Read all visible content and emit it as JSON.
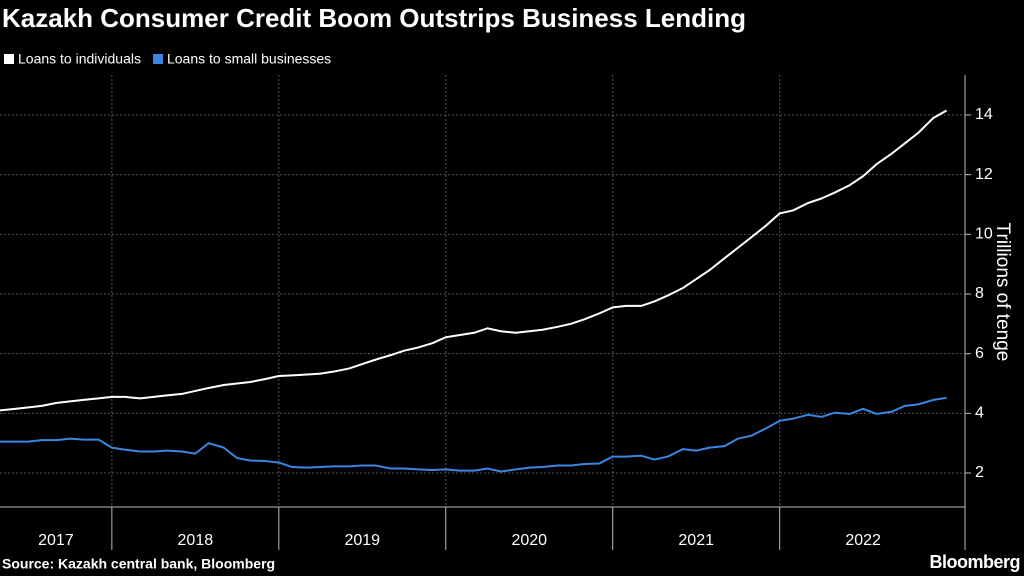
{
  "chart_data": {
    "type": "line",
    "title": "Kazakh Consumer Credit Boom Outstrips Business Lending",
    "y_axis_label": "Trillions of tenge",
    "source": "Source: Kazakh central bank, Bloomberg",
    "brand": "Bloomberg",
    "x": [
      2017.33,
      2017.42,
      2017.5,
      2017.58,
      2017.67,
      2017.75,
      2017.83,
      2017.92,
      2018,
      2018.08,
      2018.17,
      2018.25,
      2018.33,
      2018.42,
      2018.5,
      2018.58,
      2018.67,
      2018.75,
      2018.83,
      2018.92,
      2019,
      2019.08,
      2019.17,
      2019.25,
      2019.33,
      2019.42,
      2019.5,
      2019.58,
      2019.67,
      2019.75,
      2019.83,
      2019.92,
      2020,
      2020.08,
      2020.17,
      2020.25,
      2020.33,
      2020.42,
      2020.5,
      2020.58,
      2020.67,
      2020.75,
      2020.83,
      2020.92,
      2021,
      2021.08,
      2021.17,
      2021.25,
      2021.33,
      2021.42,
      2021.5,
      2021.58,
      2021.67,
      2021.75,
      2021.83,
      2021.92,
      2022,
      2022.08,
      2022.17,
      2022.25,
      2022.33,
      2022.42,
      2022.5,
      2022.58,
      2022.67,
      2022.75,
      2022.83,
      2022.92,
      2023
    ],
    "series": [
      {
        "name": "Loans to individuals",
        "color": "#ffffff",
        "values": [
          4.1,
          4.15,
          4.2,
          4.25,
          4.35,
          4.4,
          4.45,
          4.5,
          4.55,
          4.55,
          4.5,
          4.55,
          4.6,
          4.65,
          4.75,
          4.85,
          4.95,
          5.0,
          5.05,
          5.15,
          5.25,
          5.27,
          5.3,
          5.33,
          5.4,
          5.5,
          5.65,
          5.8,
          5.95,
          6.1,
          6.2,
          6.35,
          6.55,
          6.62,
          6.7,
          6.85,
          6.75,
          6.7,
          6.75,
          6.8,
          6.9,
          7.0,
          7.15,
          7.35,
          7.55,
          7.6,
          7.6,
          7.75,
          7.95,
          8.2,
          8.5,
          8.8,
          9.2,
          9.55,
          9.9,
          10.3,
          10.7,
          10.8,
          11.05,
          11.2,
          11.4,
          11.65,
          11.95,
          12.35,
          12.7,
          13.05,
          13.4,
          13.9,
          14.15
        ]
      },
      {
        "name": "Loans to small businesses",
        "color": "#3a86e0",
        "values": [
          3.05,
          3.05,
          3.05,
          3.1,
          3.1,
          3.15,
          3.12,
          3.12,
          2.85,
          2.78,
          2.72,
          2.72,
          2.75,
          2.72,
          2.65,
          3.0,
          2.85,
          2.5,
          2.42,
          2.4,
          2.35,
          2.2,
          2.18,
          2.2,
          2.22,
          2.22,
          2.25,
          2.25,
          2.15,
          2.15,
          2.12,
          2.1,
          2.12,
          2.08,
          2.08,
          2.15,
          2.05,
          2.12,
          2.18,
          2.2,
          2.25,
          2.25,
          2.3,
          2.32,
          2.55,
          2.55,
          2.58,
          2.45,
          2.55,
          2.8,
          2.75,
          2.85,
          2.9,
          3.15,
          3.25,
          3.5,
          3.75,
          3.82,
          3.95,
          3.88,
          4.02,
          3.98,
          4.15,
          3.98,
          4.05,
          4.25,
          4.3,
          4.45,
          4.52
        ]
      }
    ],
    "xlim": [
      2017.33,
      2023.11
    ],
    "xticks": [
      2018,
      2019,
      2020,
      2021,
      2022
    ],
    "year_labels": [
      2017,
      2018,
      2019,
      2020,
      2021,
      2022
    ],
    "ylim": [
      0.86,
      15.34
    ],
    "yticks": [
      2,
      4,
      6,
      8,
      10,
      12,
      14
    ],
    "grid": true
  }
}
